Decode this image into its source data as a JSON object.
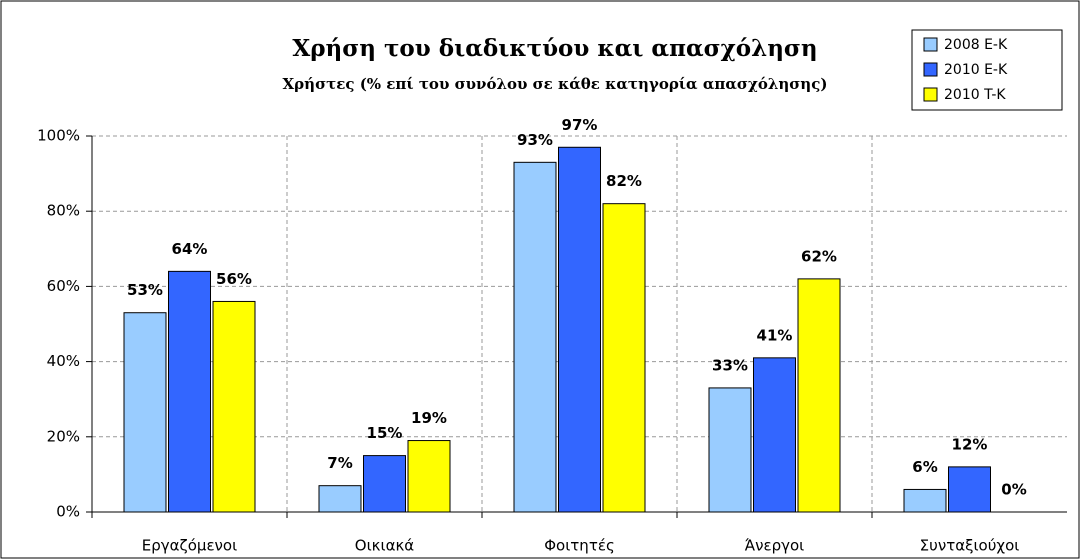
{
  "chart_data": {
    "type": "bar",
    "title": "Χρήση του διαδικτύου και απασχόληση",
    "subtitle": "Χρήστες (% επί του συνόλου σε κάθε κατηγορία απασχόλησης)",
    "categories": [
      "Εργαζόμενοι",
      "Οικιακά",
      "Φοιτητές",
      "Άνεργοι",
      "Συνταξιούχοι"
    ],
    "series": [
      {
        "name": "2008 E-K",
        "color": "#99ccff",
        "values": [
          53,
          7,
          93,
          33,
          6
        ],
        "value_labels": [
          "53%",
          "7%",
          "93%",
          "33%",
          "6%"
        ]
      },
      {
        "name": "2010 E-K",
        "color": "#3366ff",
        "values": [
          64,
          15,
          97,
          41,
          12
        ],
        "value_labels": [
          "64%",
          "15%",
          "97%",
          "41%",
          "12%"
        ]
      },
      {
        "name": "2010 T-K",
        "color": "#ffff00",
        "values": [
          56,
          19,
          82,
          62,
          0
        ],
        "value_labels": [
          "56%",
          "19%",
          "82%",
          "62%",
          "0%"
        ]
      }
    ],
    "ylim": [
      0,
      100
    ],
    "yticks": [
      {
        "value": 0,
        "label": "0%"
      },
      {
        "value": 20,
        "label": "20%"
      },
      {
        "value": 40,
        "label": "40%"
      },
      {
        "value": 60,
        "label": "60%"
      },
      {
        "value": 80,
        "label": "80%"
      },
      {
        "value": 100,
        "label": "100%"
      }
    ],
    "grid": true,
    "legend": "top-right"
  }
}
